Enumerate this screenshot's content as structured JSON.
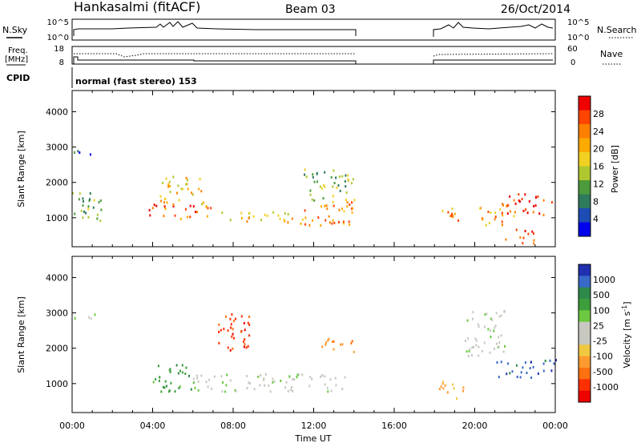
{
  "header": {
    "station": "Hankasalmi (fitACF)",
    "beam": "Beam 03",
    "date": "26/Oct/2014"
  },
  "status_panels": {
    "nsky_label": "N.Sky",
    "nsky_ticks": [
      "10^5",
      "10^0"
    ],
    "nsearch_label": "N.Search",
    "nsearch_ticks": [
      "10^5",
      "10^0"
    ],
    "freq_label_1": "Freq.",
    "freq_label_2": "[MHz]",
    "freq_ticks": [
      "18",
      "8"
    ],
    "nave_label": "Nave",
    "nave_ticks": [
      "60",
      "0"
    ],
    "cpid_label": "CPID",
    "cpid_text": "normal (fast stereo) 153"
  },
  "chart_data": {
    "type": "heatmap",
    "xlabel": "Time UT",
    "x_ticks": [
      "00:00",
      "04:00",
      "08:00",
      "12:00",
      "16:00",
      "20:00",
      "00:00"
    ],
    "xlim_hours": [
      0,
      24
    ],
    "data_gaps_ut": [
      [
        14.1,
        18.1
      ]
    ],
    "panels": [
      {
        "parameter": "Power",
        "ylabel": "Slant Range [km]",
        "yticks": [
          1000,
          2000,
          3000,
          4000
        ],
        "ylim": [
          180,
          4600
        ],
        "colorbar_label": "Power [dB]",
        "colorbar_ticks": [
          "28",
          "24",
          "20",
          "16",
          "12",
          "8",
          "4"
        ],
        "colorbar_colors": [
          "#ee0000",
          "#ff4400",
          "#ff8000",
          "#ffaa00",
          "#f0d020",
          "#b0c830",
          "#4c9a3c",
          "#2e7a5c",
          "#1c4cb4",
          "#0000ee"
        ],
        "echo_regions": [
          {
            "t": [
              0.0,
              1.5
            ],
            "r": [
              900,
              1800
            ],
            "level": 12
          },
          {
            "t": [
              0.0,
              1.0
            ],
            "r": [
              2800,
              3000
            ],
            "level": 8
          },
          {
            "t": [
              3.8,
              7.0
            ],
            "r": [
              1000,
              1400
            ],
            "level": 26
          },
          {
            "t": [
              4.3,
              6.5
            ],
            "r": [
              1400,
              2200
            ],
            "level": 18
          },
          {
            "t": [
              7.0,
              11.0
            ],
            "r": [
              900,
              1200
            ],
            "level": 20
          },
          {
            "t": [
              11.2,
              14.0
            ],
            "r": [
              800,
              1500
            ],
            "level": 22
          },
          {
            "t": [
              11.5,
              14.0
            ],
            "r": [
              1500,
              2400
            ],
            "level": 12
          },
          {
            "t": [
              18.0,
              19.2
            ],
            "r": [
              800,
              1300
            ],
            "level": 24
          },
          {
            "t": [
              20.2,
              22.0
            ],
            "r": [
              800,
              1400
            ],
            "level": 24
          },
          {
            "t": [
              21.3,
              23.8
            ],
            "r": [
              1100,
              1700
            ],
            "level": 30
          },
          {
            "t": [
              21.5,
              23.0
            ],
            "r": [
              300,
              700
            ],
            "level": 28
          }
        ]
      },
      {
        "parameter": "Velocity",
        "ylabel": "Slant Range [km]",
        "yticks": [
          1000,
          2000,
          3000,
          4000
        ],
        "ylim": [
          180,
          4600
        ],
        "colorbar_label": "Velocity [m s^-1]",
        "colorbar_ticks": [
          "1000",
          "500",
          "100",
          "25",
          "-25",
          "-100",
          "-500",
          "-1000"
        ],
        "colorbar_colors": [
          "#2030b0",
          "#3868c8",
          "#2e8a4a",
          "#3c9e3c",
          "#6cc840",
          "#c8c8c0",
          "#c8c8c0",
          "#f0c840",
          "#ff9a30",
          "#ff7010",
          "#ff3000",
          "#ee0000"
        ],
        "echo_regions": [
          {
            "t": [
              0.0,
              1.2
            ],
            "r": [
              2800,
              3000
            ],
            "velocity": 0
          },
          {
            "t": [
              4.0,
              6.0
            ],
            "r": [
              800,
              1600
            ],
            "velocity": 100
          },
          {
            "t": [
              6.0,
              13.8
            ],
            "r": [
              800,
              1300
            ],
            "velocity": 0
          },
          {
            "t": [
              7.2,
              8.8
            ],
            "r": [
              1900,
              3100
            ],
            "velocity": -300
          },
          {
            "t": [
              12.2,
              14.0
            ],
            "r": [
              1900,
              2300
            ],
            "velocity": -150
          },
          {
            "t": [
              18.2,
              19.5
            ],
            "r": [
              600,
              1100
            ],
            "velocity": -200
          },
          {
            "t": [
              21.0,
              24.0
            ],
            "r": [
              1200,
              1700
            ],
            "velocity": 400
          },
          {
            "t": [
              19.5,
              21.5
            ],
            "r": [
              1800,
              3100
            ],
            "velocity": 0
          }
        ]
      }
    ]
  }
}
